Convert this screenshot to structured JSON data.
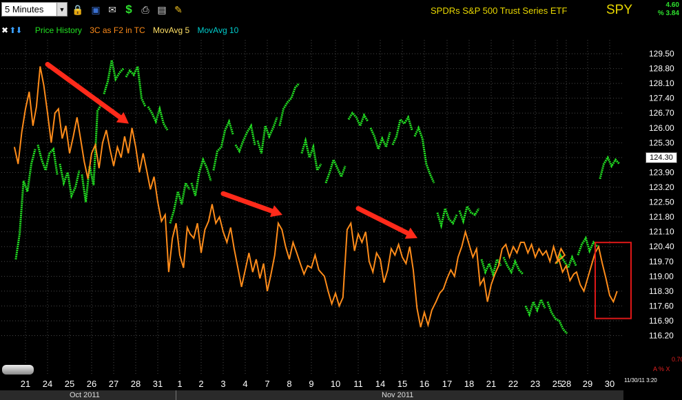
{
  "toolbar": {
    "interval": "5 Minutes",
    "icons": [
      "dropdown-icon",
      "lock-icon",
      "save-icon",
      "mail-icon",
      "dollar-icon",
      "print-icon",
      "keyboard-icon",
      "pencil-icon"
    ]
  },
  "header": {
    "security_name": "SPDRs S&P 500 Trust Series ETF",
    "symbol": "SPY",
    "change": "4.60",
    "change_pct": "% 3.84"
  },
  "legend": {
    "price": "Price History",
    "indicator": "3C as F2 in TC",
    "ma5": "MovAvg 5",
    "ma10": "MovAvg 10"
  },
  "current_price": "124.30",
  "footer": {
    "indicator_value": "0.70",
    "icons": "A % X",
    "timestamp": "11/30/11 3:20"
  },
  "colors": {
    "price": "#22e022",
    "indicator": "#ff8c1a",
    "ma5": "#ffe066",
    "ma10": "#00cccc",
    "annotation_arrow": "#ff2a1a",
    "highlight_box": "#e01818",
    "grid": "#4a4a4a"
  },
  "chart_data": {
    "type": "line",
    "ylim": [
      115.6,
      130.15
    ],
    "y_ticks": [
      "129.50",
      "128.80",
      "128.10",
      "127.40",
      "126.70",
      "126.00",
      "125.30",
      "124.60",
      "123.90",
      "123.20",
      "122.50",
      "121.80",
      "121.10",
      "120.40",
      "119.70",
      "119.00",
      "118.30",
      "117.60",
      "116.90",
      "116.20"
    ],
    "categories": [
      "21",
      "24",
      "25",
      "26",
      "27",
      "28",
      "31",
      "1",
      "2",
      "3",
      "4",
      "7",
      "8",
      "9",
      "10",
      "11",
      "14",
      "15",
      "16",
      "17",
      "18",
      "21",
      "22",
      "23",
      "25",
      "28",
      "29",
      "30"
    ],
    "months": [
      "Oct 2011",
      "Nov 2011"
    ],
    "series": [
      {
        "name": "Price History",
        "values": [
          [
            119.8,
            121.0,
            123.5,
            123.0,
            124.3,
            125.0
          ],
          [
            125.2,
            124.5,
            124.0,
            124.8,
            125.0,
            123.8
          ],
          [
            124.3,
            123.4,
            123.9,
            122.8,
            123.2,
            124.0
          ],
          [
            123.8,
            122.5,
            124.2,
            123.3,
            126.8,
            127.1
          ],
          [
            127.6,
            128.2,
            129.2,
            128.3,
            128.6,
            128.8
          ],
          [
            128.4,
            128.7,
            128.5,
            128.9,
            127.4,
            127.0
          ],
          [
            127.0,
            126.7,
            126.3,
            126.9,
            126.2,
            125.9
          ],
          [
            121.5,
            122.1,
            123.0,
            122.4,
            123.4,
            123.1
          ],
          [
            123.4,
            122.8,
            123.9,
            124.5,
            124.1,
            123.5
          ],
          [
            124.0,
            124.9,
            125.1,
            125.9,
            126.3,
            125.7
          ],
          [
            125.2,
            124.9,
            125.4,
            125.8,
            126.1,
            125.2
          ],
          [
            125.4,
            124.8,
            126.1,
            125.6,
            126.0,
            126.5
          ],
          [
            126.1,
            126.9,
            127.2,
            127.4,
            127.9,
            128.1
          ],
          [
            124.8,
            125.4,
            124.6,
            125.1,
            124.0,
            124.3
          ],
          [
            123.4,
            123.9,
            124.5,
            124.1,
            123.7,
            124.2
          ],
          [
            126.4,
            126.7,
            126.5,
            126.1,
            126.6,
            126.3
          ],
          [
            126.0,
            125.6,
            125.0,
            125.5,
            125.1,
            125.8
          ],
          [
            125.2,
            125.6,
            126.4,
            126.2,
            126.5,
            125.9
          ],
          [
            125.6,
            126.0,
            125.5,
            124.3,
            123.8,
            123.4
          ],
          [
            122.0,
            121.4,
            122.2,
            121.7,
            121.5,
            121.9
          ],
          [
            122.1,
            121.6,
            122.3,
            122.0,
            121.9,
            122.2
          ],
          [
            119.8,
            119.2,
            119.6,
            119.1,
            119.8,
            119.5
          ],
          [
            119.9,
            119.5,
            119.2,
            119.7,
            119.3,
            119.1
          ],
          [
            117.6,
            117.2,
            117.8,
            117.4,
            117.9,
            117.5
          ],
          [
            117.8,
            117.3,
            117.0,
            116.9,
            116.5,
            116.3
          ],
          [
            119.6,
            120.0,
            119.7,
            119.4,
            119.9,
            119.5
          ],
          [
            120.0,
            120.5,
            120.8,
            120.2,
            120.6,
            120.4
          ],
          [
            123.6,
            124.3,
            124.6,
            124.2,
            124.5,
            124.3
          ]
        ]
      },
      {
        "name": "3C as F2 in TC",
        "values": [
          [
            125.1,
            124.3,
            125.8,
            126.9,
            127.7,
            126.1
          ],
          [
            127.0,
            128.9,
            128.0,
            126.7,
            125.3,
            126.7
          ],
          [
            126.9,
            125.5,
            126.1,
            124.8,
            125.6,
            126.5
          ],
          [
            125.5,
            124.4,
            123.6,
            124.8,
            125.2,
            124.1
          ],
          [
            125.3,
            125.9,
            125.0,
            124.2,
            125.1,
            124.6
          ],
          [
            125.6,
            124.8,
            126.0,
            125.1,
            123.9,
            124.8
          ],
          [
            124.0,
            123.1,
            123.7,
            122.5,
            121.6,
            121.9
          ],
          [
            119.2,
            120.8,
            121.5,
            120.0,
            119.4,
            121.3
          ],
          [
            121.0,
            120.8,
            121.5,
            120.1,
            121.2,
            121.6
          ],
          [
            122.4,
            121.5,
            121.8,
            121.1,
            120.6,
            121.3
          ],
          [
            120.3,
            119.4,
            118.5,
            119.3,
            120.1,
            119.2
          ],
          [
            119.8,
            118.9,
            119.6,
            118.3,
            119.1,
            120.0
          ],
          [
            121.5,
            121.2,
            120.4,
            119.8,
            120.6,
            120.1
          ],
          [
            119.6,
            119.1,
            119.5,
            119.4,
            120.0,
            119.3
          ],
          [
            119.0,
            118.3,
            117.7,
            118.2,
            117.6,
            118.0
          ],
          [
            121.2,
            121.5,
            120.2,
            121.0,
            120.6,
            121.1
          ],
          [
            119.7,
            119.2,
            120.1,
            119.8,
            118.7,
            119.3
          ],
          [
            120.3,
            120.0,
            120.5,
            119.9,
            119.6,
            120.4
          ],
          [
            119.3,
            117.5,
            116.6,
            117.3,
            116.7,
            117.4
          ],
          [
            117.8,
            118.2,
            118.4,
            118.9,
            119.3,
            119.0
          ],
          [
            119.9,
            120.4,
            121.1,
            120.5,
            119.9,
            120.3
          ],
          [
            118.6,
            118.9,
            117.8,
            118.6,
            119.1,
            119.5
          ],
          [
            120.3,
            120.5,
            119.9,
            120.4,
            120.1,
            120.6
          ],
          [
            120.6,
            120.1,
            120.5,
            119.9,
            120.3,
            120.0
          ],
          [
            120.2,
            119.7,
            120.4,
            119.8,
            120.3,
            120.0
          ],
          [
            119.6,
            119.8,
            119.2,
            119.5,
            118.8,
            119.1
          ],
          [
            119.2,
            118.6,
            118.3,
            118.9,
            119.5,
            120.1
          ],
          [
            120.4,
            119.6,
            118.9,
            118.1,
            117.8,
            118.3
          ]
        ]
      }
    ],
    "annotations": [
      {
        "type": "arrow",
        "from_day": "24",
        "from_value": 129.0,
        "to_day": "28",
        "to_value": 126.2
      },
      {
        "type": "arrow",
        "from_day": "3",
        "from_value": 122.9,
        "to_day": "8",
        "to_value": 121.9
      },
      {
        "type": "arrow",
        "from_day": "11",
        "from_value": 122.2,
        "to_day": "16",
        "to_value": 120.8
      },
      {
        "type": "box",
        "from_day": "30",
        "from_value": 120.4,
        "to_day": "30",
        "to_value": 117.4
      }
    ],
    "grid": true
  }
}
